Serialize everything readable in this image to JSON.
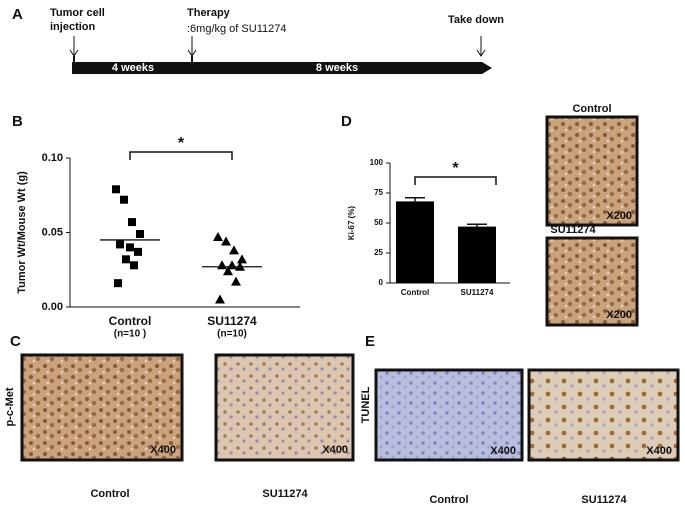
{
  "panel_a": {
    "label": "A",
    "events": [
      {
        "lines": [
          "Tumor cell",
          "injection"
        ]
      },
      {
        "title": "Therapy",
        "detail": ":6mg/kg of SU11274"
      },
      {
        "lines": [
          "Take down"
        ]
      }
    ],
    "intervals": [
      "4 weeks",
      "8 weeks"
    ]
  },
  "chart_data": [
    {
      "type": "dot",
      "panel": "B",
      "ylabel": "Tumor Wt/Mouse Wt (g)",
      "categories": [
        "Control",
        "SU11274"
      ],
      "category_notes": [
        "(n=10 )",
        "(n=10)"
      ],
      "groups": [
        {
          "marker": "square",
          "color": "#000000",
          "values": [
            0.079,
            0.072,
            0.057,
            0.049,
            0.042,
            0.04,
            0.037,
            0.032,
            0.028,
            0.016
          ],
          "mean": 0.045
        },
        {
          "marker": "triangle",
          "color": "#000000",
          "values": [
            0.047,
            0.044,
            0.038,
            0.032,
            0.028,
            0.028,
            0.027,
            0.024,
            0.017,
            0.005
          ],
          "mean": 0.027
        }
      ],
      "ylim": [
        0,
        0.1
      ],
      "yticks": [
        {
          "value": 0,
          "label": "0.00"
        },
        {
          "value": 0.05,
          "label": "0.05"
        },
        {
          "value": 0.1,
          "label": "0.10"
        }
      ],
      "annotation": "*"
    },
    {
      "type": "bar",
      "panel": "D",
      "ylabel": "Ki-67 (%)",
      "categories": [
        "Control",
        "SU11274"
      ],
      "values": [
        68,
        47
      ],
      "errors": [
        3,
        2
      ],
      "color": "#000000",
      "ylim": [
        0,
        100
      ],
      "yticks": [
        0,
        25,
        50,
        75,
        100
      ],
      "annotation": "*"
    }
  ],
  "panel_d_images": {
    "captions": [
      "Control",
      "SU11274"
    ],
    "magnification": "X200"
  },
  "panel_c": {
    "label": "C",
    "stain": "p-c-Met",
    "magnification": "X400",
    "captions": [
      "Control",
      "SU11274"
    ]
  },
  "panel_e": {
    "label": "E",
    "stain": "TUNEL",
    "magnification": "X400",
    "captions": [
      "Control",
      "SU11274"
    ]
  }
}
